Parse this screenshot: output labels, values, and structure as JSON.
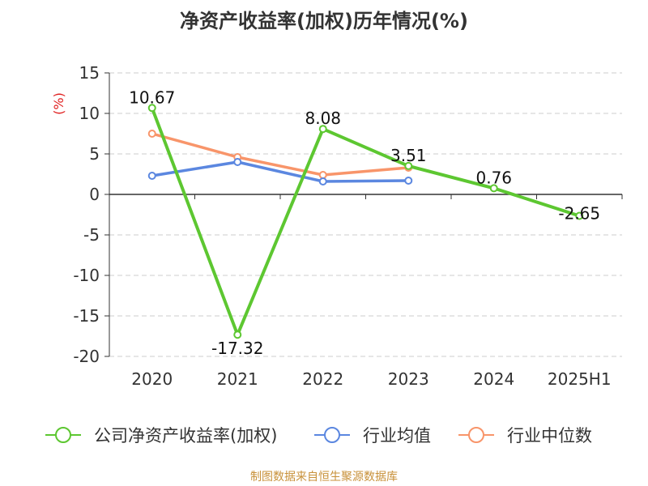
{
  "chart_data": {
    "type": "line",
    "title": "净资产收益率(加权)历年情况(%)",
    "ylabel": "(%)",
    "xlabel": "",
    "categories": [
      "2020",
      "2021",
      "2022",
      "2023",
      "2024",
      "2025H1"
    ],
    "ylim": [
      -20,
      15
    ],
    "yticks": [
      15,
      10,
      5,
      0,
      -5,
      -10,
      -15,
      -20
    ],
    "grid": true,
    "legend_position": "bottom",
    "series": [
      {
        "name": "公司净资产收益率(加权)",
        "color": "#5dc731",
        "values": [
          10.67,
          -17.32,
          8.08,
          3.51,
          0.76,
          -2.65
        ],
        "labels": [
          "10.67",
          "-17.32",
          "8.08",
          "3.51",
          "0.76",
          "-2.65"
        ],
        "show_labels": true
      },
      {
        "name": "行业均值",
        "color": "#5b87e0",
        "values": [
          2.3,
          4.0,
          1.6,
          1.7,
          null,
          null
        ],
        "show_labels": false
      },
      {
        "name": "行业中位数",
        "color": "#f8956a",
        "values": [
          7.5,
          4.6,
          2.4,
          3.3,
          null,
          null
        ],
        "show_labels": false
      }
    ]
  },
  "footer": {
    "source": "制图数据来自恒生聚源数据库"
  }
}
